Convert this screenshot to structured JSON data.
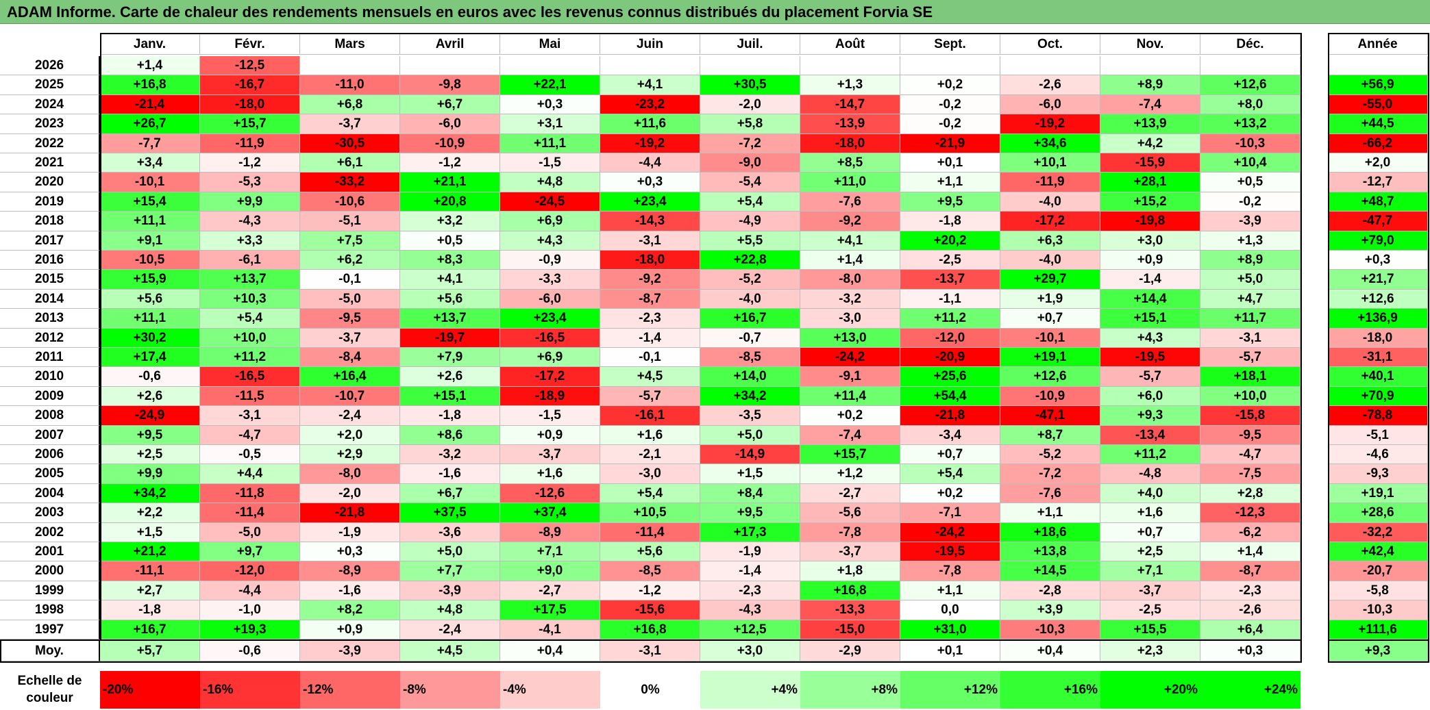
{
  "title": "ADAM Informe. Carte de chaleur des rendements mensuels en euros avec les revenus connus distribués du placement Forvia SE",
  "headers": {
    "months": [
      "Janv.",
      "Févr.",
      "Mars",
      "Avril",
      "Mai",
      "Juin",
      "Juil.",
      "Août",
      "Sept.",
      "Oct.",
      "Nov.",
      "Déc."
    ],
    "year_total": "Année"
  },
  "avg_label": "Moy.",
  "scale_label": "Echelle de couleur",
  "chart_data": {
    "type": "heatmap",
    "value_format": "signed_one_decimal",
    "columns": [
      "Janv.",
      "Févr.",
      "Mars",
      "Avril",
      "Mai",
      "Juin",
      "Juil.",
      "Août",
      "Sept.",
      "Oct.",
      "Nov.",
      "Déc."
    ],
    "rows": [
      {
        "year": "2026",
        "values": [
          1.4,
          -12.5,
          null,
          null,
          null,
          null,
          null,
          null,
          null,
          null,
          null,
          null
        ],
        "annual": null
      },
      {
        "year": "2025",
        "values": [
          16.8,
          -16.7,
          -11.0,
          -9.8,
          22.1,
          4.1,
          30.5,
          1.3,
          0.2,
          -2.6,
          8.9,
          12.6
        ],
        "annual": 56.9
      },
      {
        "year": "2024",
        "values": [
          -21.4,
          -18.0,
          6.8,
          6.7,
          0.3,
          -23.2,
          -2.0,
          -14.7,
          -0.2,
          -6.0,
          -7.4,
          8.0
        ],
        "annual": -55.0
      },
      {
        "year": "2023",
        "values": [
          26.7,
          15.7,
          -3.7,
          -6.0,
          3.1,
          11.6,
          5.8,
          -13.9,
          -0.2,
          -19.2,
          13.9,
          13.2
        ],
        "annual": 44.5
      },
      {
        "year": "2022",
        "values": [
          -7.7,
          -11.9,
          -30.5,
          -10.9,
          11.1,
          -19.2,
          -7.2,
          -18.0,
          -21.9,
          34.6,
          4.2,
          -10.3
        ],
        "annual": -66.2
      },
      {
        "year": "2021",
        "values": [
          3.4,
          -1.2,
          6.1,
          -1.2,
          -1.5,
          -4.4,
          -9.0,
          8.5,
          0.1,
          10.1,
          -15.9,
          10.4
        ],
        "annual": 2.0
      },
      {
        "year": "2020",
        "values": [
          -10.1,
          -5.3,
          -33.2,
          21.1,
          4.8,
          0.3,
          -5.4,
          11.0,
          1.1,
          -11.9,
          28.1,
          0.5
        ],
        "annual": -12.7
      },
      {
        "year": "2019",
        "values": [
          15.4,
          9.9,
          -10.6,
          20.8,
          -24.5,
          23.4,
          5.4,
          -7.6,
          9.5,
          -4.0,
          15.2,
          -0.2
        ],
        "annual": 48.7
      },
      {
        "year": "2018",
        "values": [
          11.1,
          -4.3,
          -5.1,
          3.2,
          6.9,
          -14.3,
          -4.9,
          -9.2,
          -1.8,
          -17.2,
          -19.8,
          -3.9
        ],
        "annual": -47.7
      },
      {
        "year": "2017",
        "values": [
          9.1,
          3.3,
          7.5,
          0.5,
          4.3,
          -3.1,
          5.5,
          4.1,
          20.2,
          6.3,
          3.0,
          1.3
        ],
        "annual": 79.0
      },
      {
        "year": "2016",
        "values": [
          -10.5,
          -6.1,
          6.2,
          8.3,
          -0.9,
          -18.0,
          22.8,
          1.4,
          -2.5,
          -4.0,
          0.9,
          8.9
        ],
        "annual": 0.3
      },
      {
        "year": "2015",
        "values": [
          15.9,
          13.7,
          -0.1,
          4.1,
          -3.3,
          -9.2,
          -5.2,
          -8.0,
          -13.7,
          29.7,
          -1.4,
          5.0
        ],
        "annual": 21.7
      },
      {
        "year": "2014",
        "values": [
          5.6,
          10.3,
          -5.0,
          5.6,
          -6.0,
          -8.7,
          -4.0,
          -3.2,
          -1.1,
          1.9,
          14.4,
          4.7
        ],
        "annual": 12.6
      },
      {
        "year": "2013",
        "values": [
          11.1,
          5.4,
          -9.5,
          13.7,
          23.4,
          -2.3,
          16.7,
          -3.0,
          11.2,
          0.7,
          15.1,
          11.7
        ],
        "annual": 136.9
      },
      {
        "year": "2012",
        "values": [
          30.2,
          10.0,
          -3.7,
          -19.7,
          -16.5,
          -1.4,
          -0.7,
          13.0,
          -12.0,
          -10.1,
          4.3,
          -3.1
        ],
        "annual": -18.0
      },
      {
        "year": "2011",
        "values": [
          17.4,
          11.2,
          -8.4,
          7.9,
          6.9,
          -0.1,
          -8.5,
          -24.2,
          -20.9,
          19.1,
          -19.5,
          -5.7
        ],
        "annual": -31.1
      },
      {
        "year": "2010",
        "values": [
          -0.6,
          -16.5,
          16.4,
          2.6,
          -17.2,
          4.5,
          14.0,
          -9.1,
          25.6,
          12.6,
          -5.7,
          18.1
        ],
        "annual": 40.1
      },
      {
        "year": "2009",
        "values": [
          2.6,
          -11.5,
          -10.7,
          15.1,
          -18.9,
          -5.7,
          34.2,
          11.4,
          54.4,
          -10.9,
          6.0,
          10.0
        ],
        "annual": 70.9
      },
      {
        "year": "2008",
        "values": [
          -24.9,
          -3.1,
          -2.4,
          -1.8,
          -1.5,
          -16.1,
          -3.5,
          0.2,
          -21.8,
          -47.1,
          9.3,
          -15.8
        ],
        "annual": -78.8
      },
      {
        "year": "2007",
        "values": [
          9.5,
          -4.7,
          2.0,
          8.6,
          0.9,
          1.6,
          5.0,
          -7.4,
          -3.4,
          8.7,
          -13.4,
          -9.5
        ],
        "annual": -5.1
      },
      {
        "year": "2006",
        "values": [
          2.5,
          -0.5,
          2.9,
          -3.2,
          -3.7,
          -2.1,
          -14.9,
          15.7,
          0.7,
          -5.2,
          11.2,
          -4.7
        ],
        "annual": -4.6
      },
      {
        "year": "2005",
        "values": [
          9.9,
          4.4,
          -8.0,
          -1.6,
          1.6,
          -3.0,
          1.5,
          1.2,
          5.4,
          -7.2,
          -4.8,
          -7.5
        ],
        "annual": -9.3
      },
      {
        "year": "2004",
        "values": [
          34.2,
          -11.8,
          -2.0,
          6.7,
          -12.6,
          5.4,
          8.4,
          -2.7,
          0.2,
          -7.6,
          4.0,
          2.8
        ],
        "annual": 19.1
      },
      {
        "year": "2003",
        "values": [
          2.2,
          -11.4,
          -21.8,
          37.5,
          37.4,
          10.5,
          9.5,
          -5.6,
          -7.1,
          1.1,
          1.6,
          -12.3
        ],
        "annual": 28.6
      },
      {
        "year": "2002",
        "values": [
          1.5,
          -5.0,
          -1.9,
          -3.6,
          -8.9,
          -11.4,
          17.3,
          -7.8,
          -24.2,
          18.6,
          0.7,
          -6.2
        ],
        "annual": -32.2
      },
      {
        "year": "2001",
        "values": [
          21.2,
          9.7,
          0.3,
          5.0,
          7.1,
          5.6,
          -1.9,
          -3.7,
          -19.5,
          13.8,
          2.5,
          1.4
        ],
        "annual": 42.4
      },
      {
        "year": "2000",
        "values": [
          -11.1,
          -12.0,
          -8.9,
          7.7,
          9.0,
          -8.5,
          -1.4,
          1.8,
          -7.8,
          14.5,
          7.1,
          -8.7
        ],
        "annual": -20.7
      },
      {
        "year": "1999",
        "values": [
          2.7,
          -4.4,
          -1.6,
          -3.9,
          -2.7,
          -1.2,
          -2.3,
          16.8,
          1.1,
          -2.8,
          -3.7,
          -2.3
        ],
        "annual": -5.8
      },
      {
        "year": "1998",
        "values": [
          -1.8,
          -1.0,
          8.2,
          4.8,
          17.5,
          -15.6,
          -4.3,
          -13.3,
          0.0,
          3.9,
          -2.5,
          -2.6
        ],
        "annual": -10.3
      },
      {
        "year": "1997",
        "values": [
          16.7,
          19.3,
          0.9,
          -2.4,
          -4.1,
          16.8,
          12.5,
          -15.0,
          31.0,
          -10.3,
          15.5,
          6.4
        ],
        "annual": 111.6
      }
    ],
    "averages": [
      5.7,
      -0.6,
      -3.9,
      4.5,
      0.4,
      -3.1,
      3.0,
      -2.9,
      0.1,
      0.4,
      2.3,
      0.3
    ],
    "average_annual": 9.3,
    "color_scale": [
      {
        "label": "-20%",
        "color": "#ff0000"
      },
      {
        "label": "-16%",
        "color": "#ff3333"
      },
      {
        "label": "-12%",
        "color": "#ff6666"
      },
      {
        "label": "-8%",
        "color": "#ff9999"
      },
      {
        "label": "-4%",
        "color": "#ffcccc"
      },
      {
        "label": "0%",
        "color": "#ffffff"
      },
      {
        "label": "+4%",
        "color": "#ccffcc"
      },
      {
        "label": "+8%",
        "color": "#99ff99"
      },
      {
        "label": "+12%",
        "color": "#66ff66"
      },
      {
        "label": "+16%",
        "color": "#33ff33"
      },
      {
        "label": "+20%",
        "color": "#00ff00"
      },
      {
        "label": "+24%",
        "color": "#00ff00"
      }
    ]
  }
}
